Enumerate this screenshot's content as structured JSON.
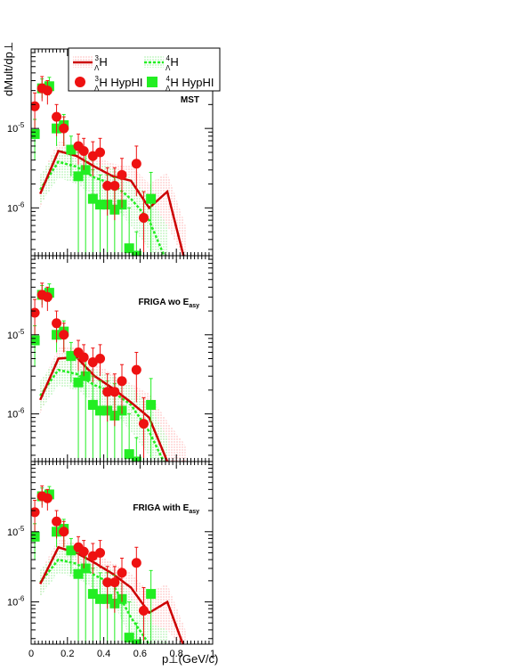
{
  "chart_data": {
    "type": "scatter",
    "xlabel": "p⊥(GeV/c)",
    "ylabel": "dMult/dp⊥",
    "xlim": [
      0,
      1
    ],
    "ylim": [
      2.5e-07,
      0.0001
    ],
    "ylog": true,
    "xticks": [
      "0",
      "0.2",
      "0.4",
      "0.6",
      "0.8",
      "1"
    ],
    "yticks": [
      {
        "label": "10",
        "exp": "-5",
        "value": 1e-05
      },
      {
        "label": "10",
        "exp": "-6",
        "value": 1e-06
      }
    ],
    "colors": {
      "red": "#ee1111",
      "green": "#22ee22",
      "dark_red": "#cc0000"
    },
    "legend": {
      "placement": "top-right",
      "entries": [
        {
          "name": "ΛH (A=3)",
          "display": {
            "sup": "3",
            "sub": "Λ",
            "text": "H"
          },
          "kind": "band-line",
          "color": "#cc0000"
        },
        {
          "name": "ΛH (A=4)",
          "display": {
            "sup": "4",
            "sub": "Λ",
            "text": "H"
          },
          "kind": "band-dash",
          "color": "#22ee22"
        },
        {
          "name": "ΛH HypHI (A=3)",
          "display": {
            "sup": "3",
            "sub": "Λ",
            "text": "H HypHI"
          },
          "kind": "circle",
          "color": "#ee1111"
        },
        {
          "name": "ΛH HypHI (A=4)",
          "display": {
            "sup": "4",
            "sub": "Λ",
            "text": "H HypHI"
          },
          "kind": "square",
          "color": "#22ee22"
        }
      ]
    },
    "panels": [
      {
        "label": "MST",
        "label_sub": "",
        "model3": {
          "x": [
            0.05,
            0.15,
            0.25,
            0.35,
            0.45,
            0.55,
            0.65,
            0.75,
            0.85
          ],
          "y": [
            1.5e-06,
            5.2e-06,
            4.5e-06,
            3.3e-06,
            2.5e-06,
            2.2e-06,
            1e-06,
            1.6e-06,
            2e-07
          ],
          "band_lo": [
            1e-06,
            3.5e-06,
            3e-06,
            2.2e-06,
            1.6e-06,
            1.2e-06,
            5e-07,
            6e-07,
            2e-07
          ],
          "band_hi": [
            2.4e-06,
            7e-06,
            6e-06,
            4.6e-06,
            3.6e-06,
            3.4e-06,
            2e-06,
            2.8e-06,
            6e-07
          ]
        },
        "model4": {
          "x": [
            0.05,
            0.15,
            0.25,
            0.35,
            0.45,
            0.55,
            0.65,
            0.75
          ],
          "y": [
            1.7e-06,
            3.8e-06,
            3.3e-06,
            2.4e-06,
            2e-06,
            1.3e-06,
            7e-07,
            2e-07
          ],
          "band_lo": [
            1.1e-06,
            2.4e-06,
            2e-06,
            1.4e-06,
            1.1e-06,
            6e-07,
            3e-07,
            2e-07
          ],
          "band_hi": [
            2.6e-06,
            5.6e-06,
            4.8e-06,
            3.8e-06,
            3.2e-06,
            2.4e-06,
            1.4e-06,
            6e-07
          ]
        }
      },
      {
        "label": "FRIGA wo E",
        "label_sub": "asy",
        "model3": {
          "x": [
            0.05,
            0.15,
            0.25,
            0.35,
            0.45,
            0.55,
            0.65,
            0.75,
            0.85
          ],
          "y": [
            1.5e-06,
            5e-06,
            5.2e-06,
            3e-06,
            2.1e-06,
            1.4e-06,
            9e-07,
            2.5e-07,
            2e-07
          ],
          "band_lo": [
            1e-06,
            3.4e-06,
            3.5e-06,
            2e-06,
            1.3e-06,
            8e-07,
            4e-07,
            2e-07,
            2e-07
          ],
          "band_hi": [
            2.3e-06,
            6.8e-06,
            7e-06,
            4.4e-06,
            3.2e-06,
            2.4e-06,
            1.8e-06,
            8e-07,
            4e-07
          ]
        },
        "model4": {
          "x": [
            0.05,
            0.15,
            0.25,
            0.35,
            0.45,
            0.55,
            0.65,
            0.75
          ],
          "y": [
            1.7e-06,
            3.6e-06,
            3.2e-06,
            2.3e-06,
            1.9e-06,
            1.3e-06,
            6e-07,
            2e-07
          ],
          "band_lo": [
            1.1e-06,
            2.3e-06,
            2e-06,
            1.4e-06,
            1.1e-06,
            6e-07,
            3e-07,
            2e-07
          ],
          "band_hi": [
            2.6e-06,
            5.4e-06,
            4.7e-06,
            3.6e-06,
            3e-06,
            2.3e-06,
            1.3e-06,
            5e-07
          ]
        }
      },
      {
        "label": "FRIGA with E",
        "label_sub": "asy",
        "model3": {
          "x": [
            0.05,
            0.15,
            0.25,
            0.35,
            0.45,
            0.55,
            0.65,
            0.75,
            0.85
          ],
          "y": [
            1.8e-06,
            6e-06,
            5e-06,
            3.6e-06,
            2.5e-06,
            1.6e-06,
            7e-07,
            1e-06,
            2e-07
          ],
          "band_lo": [
            1.2e-06,
            4e-06,
            3.4e-06,
            2.4e-06,
            1.6e-06,
            9e-07,
            4e-07,
            4e-07,
            2e-07
          ],
          "band_hi": [
            2.6e-06,
            8e-06,
            6.8e-06,
            5e-06,
            3.6e-06,
            2.6e-06,
            1.4e-06,
            1.8e-06,
            4e-07
          ]
        },
        "model4": {
          "x": [
            0.05,
            0.15,
            0.25,
            0.35,
            0.45,
            0.55,
            0.65,
            0.75
          ],
          "y": [
            1.9e-06,
            4e-06,
            3.5e-06,
            2.4e-06,
            1.8e-06,
            6e-07,
            2.5e-07,
            2e-07
          ],
          "band_lo": [
            1.2e-06,
            2.6e-06,
            2.2e-06,
            1.5e-06,
            1e-06,
            3e-07,
            2e-07,
            2e-07
          ],
          "band_hi": [
            2.8e-06,
            5.8e-06,
            5e-06,
            3.6e-06,
            2.8e-06,
            1.2e-06,
            5e-07,
            4e-07
          ]
        }
      }
    ],
    "data3": {
      "x": [
        0.02,
        0.06,
        0.09,
        0.14,
        0.18,
        0.26,
        0.29,
        0.34,
        0.38,
        0.42,
        0.46,
        0.5,
        0.58,
        0.62
      ],
      "y": [
        1.9e-05,
        3.2e-05,
        3e-05,
        1.4e-05,
        1e-05,
        6e-06,
        5.2e-06,
        4.5e-06,
        5e-06,
        1.9e-06,
        1.9e-06,
        2.6e-06,
        3.6e-06,
        7.5e-07
      ],
      "err_lo": [
        1e-05,
        2.2e-05,
        2e-05,
        8e-06,
        6e-06,
        3.5e-06,
        3e-06,
        2.5e-06,
        3e-06,
        8e-07,
        7e-07,
        1e-06,
        1.4e-06,
        2.5e-07
      ],
      "err_hi": [
        2.8e-05,
        4.5e-05,
        4e-05,
        2e-05,
        1.4e-05,
        8.5e-06,
        7.5e-06,
        6.8e-06,
        7.5e-06,
        3.2e-06,
        3.2e-06,
        4.2e-06,
        6e-06,
        1.6e-06
      ]
    },
    "data4": {
      "x": [
        0.02,
        0.06,
        0.1,
        0.14,
        0.18,
        0.22,
        0.26,
        0.3,
        0.34,
        0.38,
        0.42,
        0.46,
        0.5,
        0.54,
        0.58,
        0.66
      ],
      "y": [
        8.5e-06,
        3.2e-05,
        3.4e-05,
        1e-05,
        1.1e-05,
        5.4e-06,
        2.5e-06,
        3e-06,
        1.3e-06,
        1.1e-06,
        1.1e-06,
        9.5e-07,
        1.1e-06,
        3.1e-07,
        2.5e-07,
        1.3e-06
      ],
      "err_lo": [
        4e-06,
        2.4e-05,
        2.6e-05,
        6e-06,
        6e-06,
        2.5e-06,
        2.5e-07,
        2.5e-07,
        2.5e-07,
        2.5e-07,
        2.5e-07,
        2.5e-07,
        2.5e-07,
        2.5e-07,
        2.5e-07,
        2.5e-07
      ],
      "err_hi": [
        1.3e-05,
        4.2e-05,
        4.4e-05,
        1.4e-05,
        1.5e-05,
        8e-06,
        5e-06,
        5.5e-06,
        3e-06,
        2.6e-06,
        2.6e-06,
        2.4e-06,
        2.7e-06,
        1e-06,
        5e-07,
        2.8e-06
      ]
    }
  }
}
